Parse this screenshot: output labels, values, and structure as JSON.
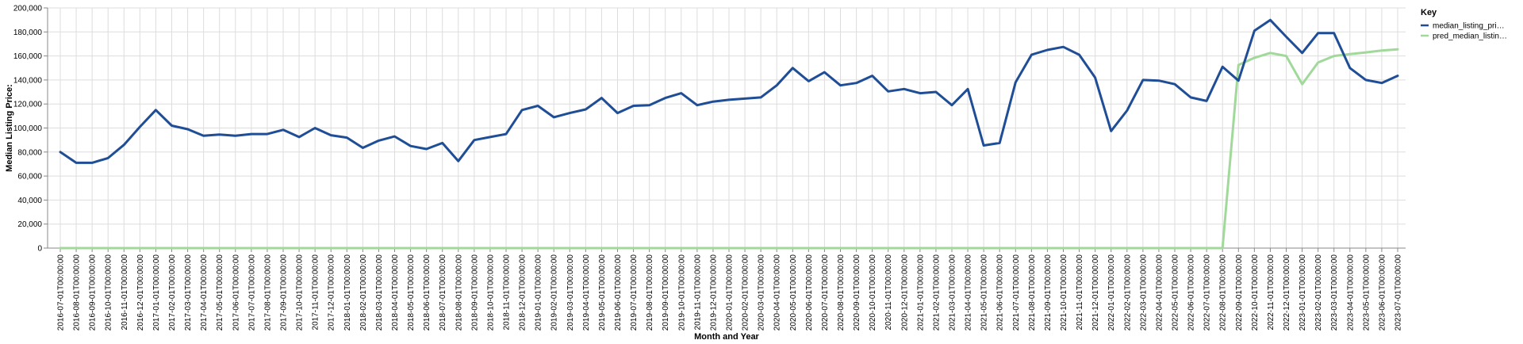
{
  "chart_data": {
    "type": "line",
    "xlabel": "Month and Year",
    "ylabel": "Median Listing Price:",
    "ylim": [
      0,
      200000
    ],
    "yticks": [
      "0",
      "20,000",
      "40,000",
      "60,000",
      "80,000",
      "100,000",
      "120,000",
      "140,000",
      "160,000",
      "180,000",
      "200,000"
    ],
    "grid": true,
    "legend_placement": "top-right",
    "legend_title": "Key",
    "x": [
      "2016-07-01T00:00:00",
      "2016-08-01T00:00:00",
      "2016-09-01T00:00:00",
      "2016-10-01T00:00:00",
      "2016-11-01T00:00:00",
      "2016-12-01T00:00:00",
      "2017-01-01T00:00:00",
      "2017-02-01T00:00:00",
      "2017-03-01T00:00:00",
      "2017-04-01T00:00:00",
      "2017-05-01T00:00:00",
      "2017-06-01T00:00:00",
      "2017-07-01T00:00:00",
      "2017-08-01T00:00:00",
      "2017-09-01T00:00:00",
      "2017-10-01T00:00:00",
      "2017-11-01T00:00:00",
      "2017-12-01T00:00:00",
      "2018-01-01T00:00:00",
      "2018-02-01T00:00:00",
      "2018-03-01T00:00:00",
      "2018-04-01T00:00:00",
      "2018-05-01T00:00:00",
      "2018-06-01T00:00:00",
      "2018-07-01T00:00:00",
      "2018-08-01T00:00:00",
      "2018-09-01T00:00:00",
      "2018-10-01T00:00:00",
      "2018-11-01T00:00:00",
      "2018-12-01T00:00:00",
      "2019-01-01T00:00:00",
      "2019-02-01T00:00:00",
      "2019-03-01T00:00:00",
      "2019-04-01T00:00:00",
      "2019-05-01T00:00:00",
      "2019-06-01T00:00:00",
      "2019-07-01T00:00:00",
      "2019-08-01T00:00:00",
      "2019-09-01T00:00:00",
      "2019-10-01T00:00:00",
      "2019-11-01T00:00:00",
      "2019-12-01T00:00:00",
      "2020-01-01T00:00:00",
      "2020-02-01T00:00:00",
      "2020-03-01T00:00:00",
      "2020-04-01T00:00:00",
      "2020-05-01T00:00:00",
      "2020-06-01T00:00:00",
      "2020-07-01T00:00:00",
      "2020-08-01T00:00:00",
      "2020-09-01T00:00:00",
      "2020-10-01T00:00:00",
      "2020-11-01T00:00:00",
      "2020-12-01T00:00:00",
      "2021-01-01T00:00:00",
      "2021-02-01T00:00:00",
      "2021-03-01T00:00:00",
      "2021-04-01T00:00:00",
      "2021-05-01T00:00:00",
      "2021-06-01T00:00:00",
      "2021-07-01T00:00:00",
      "2021-08-01T00:00:00",
      "2021-09-01T00:00:00",
      "2021-10-01T00:00:00",
      "2021-11-01T00:00:00",
      "2021-12-01T00:00:00",
      "2022-01-01T00:00:00",
      "2022-02-01T00:00:00",
      "2022-03-01T00:00:00",
      "2022-04-01T00:00:00",
      "2022-05-01T00:00:00",
      "2022-06-01T00:00:00",
      "2022-07-01T00:00:00",
      "2022-08-01T00:00:00",
      "2022-09-01T00:00:00",
      "2022-10-01T00:00:00",
      "2022-11-01T00:00:00",
      "2022-12-01T00:00:00",
      "2023-01-01T00:00:00",
      "2023-02-01T00:00:00",
      "2023-03-01T00:00:00",
      "2023-04-01T00:00:00",
      "2023-05-01T00:00:00",
      "2023-06-01T00:00:00",
      "2023-07-01T00:00:00"
    ],
    "series": [
      {
        "name": "median_listing_pri…",
        "color": "#1f4e96",
        "values": [
          80000,
          71000,
          71000,
          75000,
          86000,
          101000,
          115000,
          102000,
          99000,
          93500,
          94500,
          93500,
          95000,
          95000,
          98500,
          92500,
          100000,
          94000,
          92000,
          83500,
          89500,
          93000,
          85000,
          82500,
          87500,
          72500,
          90000,
          92500,
          95000,
          115000,
          118500,
          109000,
          112500,
          115500,
          125000,
          112500,
          118500,
          119000,
          125000,
          129000,
          119000,
          122000,
          123500,
          124500,
          125500,
          135500,
          150000,
          139000,
          146500,
          135500,
          137500,
          143500,
          130500,
          132500,
          129000,
          130000,
          119000,
          132500,
          85500,
          87500,
          138000,
          161000,
          165000,
          167500,
          161000,
          142000,
          97500,
          114500,
          140000,
          139500,
          136500,
          125500,
          122500,
          151000,
          139500,
          181000,
          190000,
          176000,
          162500,
          179000,
          179000,
          150000,
          140000,
          137500,
          143500
        ]
      },
      {
        "name": "pred_median_listin…",
        "color": "#a1d99b",
        "values": [
          0,
          0,
          0,
          0,
          0,
          0,
          0,
          0,
          0,
          0,
          0,
          0,
          0,
          0,
          0,
          0,
          0,
          0,
          0,
          0,
          0,
          0,
          0,
          0,
          0,
          0,
          0,
          0,
          0,
          0,
          0,
          0,
          0,
          0,
          0,
          0,
          0,
          0,
          0,
          0,
          0,
          0,
          0,
          0,
          0,
          0,
          0,
          0,
          0,
          0,
          0,
          0,
          0,
          0,
          0,
          0,
          0,
          0,
          0,
          0,
          0,
          0,
          0,
          0,
          0,
          0,
          0,
          0,
          0,
          0,
          0,
          0,
          0,
          0,
          152500,
          158500,
          162500,
          160000,
          136500,
          154500,
          160000,
          161500,
          163000,
          164500,
          165500
        ]
      }
    ]
  }
}
